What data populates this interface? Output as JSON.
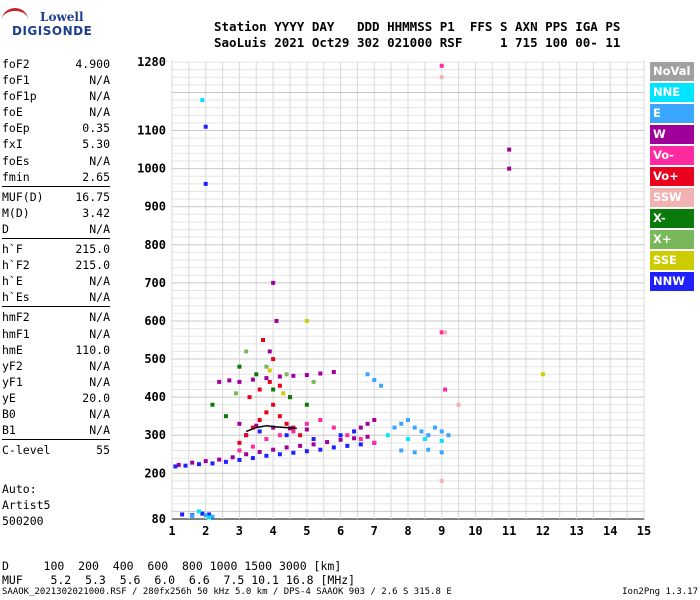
{
  "logo": {
    "line1": "Lowell",
    "line2": "DIGISONDE"
  },
  "header": {
    "labels": "Station YYYY DAY   DDD HHMMSS P1  FFS S AXN PPS IGA PS",
    "values": "SaoLuis 2021 Oct29 302 021000 RSF     1 715 100 00- 11"
  },
  "params": {
    "group1": [
      {
        "k": "foF2",
        "v": "4.900"
      },
      {
        "k": "foF1",
        "v": "N/A"
      },
      {
        "k": "foF1p",
        "v": "N/A"
      },
      {
        "k": "foE",
        "v": "N/A"
      },
      {
        "k": "foEp",
        "v": "0.35"
      },
      {
        "k": "fxI",
        "v": "5.30"
      },
      {
        "k": "foEs",
        "v": "N/A"
      },
      {
        "k": "fmin",
        "v": "2.65"
      }
    ],
    "group2": [
      {
        "k": "MUF(D)",
        "v": "16.75"
      },
      {
        "k": "M(D)",
        "v": "3.42"
      },
      {
        "k": "D",
        "v": "N/A"
      }
    ],
    "group3": [
      {
        "k": "h`F",
        "v": "215.0"
      },
      {
        "k": "h`F2",
        "v": "215.0"
      },
      {
        "k": "h`E",
        "v": "N/A"
      },
      {
        "k": "h`Es",
        "v": "N/A"
      }
    ],
    "group4": [
      {
        "k": "hmF2",
        "v": "N/A"
      },
      {
        "k": "hmF1",
        "v": "N/A"
      },
      {
        "k": "hmE",
        "v": "110.0"
      },
      {
        "k": "yF2",
        "v": "N/A"
      },
      {
        "k": "yF1",
        "v": "N/A"
      },
      {
        "k": "yE",
        "v": "20.0"
      },
      {
        "k": "B0",
        "v": "N/A"
      },
      {
        "k": "B1",
        "v": "N/A"
      }
    ],
    "group5": [
      {
        "k": "C-level",
        "v": "55"
      }
    ]
  },
  "auto": {
    "line1": "Auto:",
    "line2": "Artist5",
    "line3": "500200"
  },
  "legend": [
    {
      "label": "NoVal",
      "color": "#a0a0a0"
    },
    {
      "label": "NNE",
      "color": "#00e5ff"
    },
    {
      "label": "E",
      "color": "#3aa6ff"
    },
    {
      "label": "W",
      "color": "#a0009a"
    },
    {
      "label": "Vo-",
      "color": "#ff2aa0"
    },
    {
      "label": "Vo+",
      "color": "#e8001c"
    },
    {
      "label": "SSW",
      "color": "#f2b2b2"
    },
    {
      "label": "X-",
      "color": "#0a7a0a"
    },
    {
      "label": "X+",
      "color": "#78b85a"
    },
    {
      "label": "SSE",
      "color": "#cccc00"
    },
    {
      "label": "NNW",
      "color": "#2020ff"
    }
  ],
  "bottom_table": {
    "d_row": "D     100  200  400  600  800 1000 1500 3000 [km]",
    "muf_row": "MUF    5.2  5.3  5.6  6.0  6.6  7.5 10.1 16.8 [MHz]"
  },
  "footer": {
    "left": "SAAOK_2021302021000.RSF / 280fx256h 50 kHz 5.0 km / DPS-4 SAAOK 903 / 2.6 S 315.8 E",
    "right": "Ion2Png 1.3.17"
  },
  "chart_data": {
    "type": "scatter",
    "x_ticks": [
      "1",
      "2",
      "3",
      "4",
      "5",
      "6",
      "7",
      "8",
      "9",
      "10",
      "11",
      "12",
      "13",
      "14",
      "15"
    ],
    "y_ticks": [
      "80",
      "200",
      "300",
      "400",
      "500",
      "600",
      "700",
      "800",
      "900",
      "1000",
      "1100",
      "1280"
    ],
    "xlim": [
      1,
      15
    ],
    "ylim": [
      80,
      1280
    ],
    "grid": true,
    "series": [
      {
        "color_key": "W",
        "points": [
          [
            1.2,
            222
          ],
          [
            1.6,
            228
          ],
          [
            2.0,
            232
          ],
          [
            2.4,
            236
          ],
          [
            2.8,
            242
          ],
          [
            3.2,
            250
          ],
          [
            3.6,
            256
          ],
          [
            4.0,
            262
          ],
          [
            4.4,
            268
          ],
          [
            4.8,
            272
          ],
          [
            5.2,
            276
          ],
          [
            5.6,
            282
          ],
          [
            6.0,
            288
          ],
          [
            6.4,
            292
          ],
          [
            6.8,
            296
          ],
          [
            3.0,
            440
          ],
          [
            3.4,
            446
          ],
          [
            3.8,
            450
          ],
          [
            4.2,
            454
          ],
          [
            4.6,
            456
          ],
          [
            5.0,
            458
          ],
          [
            5.4,
            462
          ],
          [
            5.8,
            466
          ],
          [
            2.4,
            440
          ],
          [
            2.7,
            444
          ],
          [
            3.0,
            330
          ],
          [
            3.5,
            325
          ],
          [
            4.0,
            320
          ],
          [
            4.5,
            318
          ],
          [
            5.0,
            315
          ],
          [
            6.6,
            320
          ],
          [
            6.8,
            330
          ],
          [
            7.0,
            340
          ],
          [
            3.9,
            520
          ],
          [
            4.1,
            600
          ],
          [
            4.0,
            700
          ],
          [
            11.0,
            1050
          ],
          [
            11.0,
            1000
          ]
        ]
      },
      {
        "color_key": "NNW",
        "points": [
          [
            1.1,
            218
          ],
          [
            1.4,
            220
          ],
          [
            1.8,
            224
          ],
          [
            2.2,
            226
          ],
          [
            2.6,
            230
          ],
          [
            3.0,
            235
          ],
          [
            3.4,
            240
          ],
          [
            3.8,
            246
          ],
          [
            4.2,
            250
          ],
          [
            4.6,
            254
          ],
          [
            5.0,
            258
          ],
          [
            5.4,
            262
          ],
          [
            5.8,
            268
          ],
          [
            6.2,
            272
          ],
          [
            6.6,
            276
          ],
          [
            7.0,
            280
          ],
          [
            1.3,
            92
          ],
          [
            1.6,
            90
          ],
          [
            1.9,
            94
          ],
          [
            2.1,
            92
          ],
          [
            3.2,
            300
          ],
          [
            3.6,
            310
          ],
          [
            4.4,
            300
          ],
          [
            5.2,
            290
          ],
          [
            6.0,
            300
          ],
          [
            6.4,
            310
          ],
          [
            2.0,
            1110
          ],
          [
            2.0,
            960
          ]
        ]
      },
      {
        "color_key": "Vo+",
        "points": [
          [
            3.2,
            300
          ],
          [
            3.4,
            320
          ],
          [
            3.6,
            340
          ],
          [
            3.8,
            360
          ],
          [
            4.0,
            380
          ],
          [
            4.2,
            350
          ],
          [
            4.4,
            330
          ],
          [
            4.6,
            320
          ],
          [
            3.3,
            400
          ],
          [
            3.6,
            420
          ],
          [
            3.9,
            440
          ],
          [
            4.2,
            430
          ],
          [
            4.5,
            400
          ],
          [
            3.0,
            280
          ],
          [
            4.8,
            300
          ],
          [
            4.0,
            500
          ],
          [
            3.7,
            550
          ]
        ]
      },
      {
        "color_key": "Vo-",
        "points": [
          [
            3.0,
            260
          ],
          [
            3.4,
            270
          ],
          [
            3.8,
            290
          ],
          [
            4.2,
            300
          ],
          [
            4.6,
            310
          ],
          [
            5.0,
            330
          ],
          [
            5.4,
            340
          ],
          [
            5.8,
            320
          ],
          [
            6.2,
            300
          ],
          [
            6.6,
            290
          ],
          [
            7.0,
            280
          ],
          [
            9.0,
            1270
          ],
          [
            9.0,
            570
          ],
          [
            9.1,
            420
          ]
        ]
      },
      {
        "color_key": "E",
        "points": [
          [
            7.6,
            320
          ],
          [
            7.8,
            330
          ],
          [
            8.0,
            340
          ],
          [
            8.2,
            320
          ],
          [
            8.4,
            310
          ],
          [
            8.6,
            300
          ],
          [
            8.8,
            320
          ],
          [
            9.0,
            310
          ],
          [
            9.2,
            300
          ],
          [
            7.8,
            260
          ],
          [
            8.2,
            255
          ],
          [
            8.6,
            262
          ],
          [
            9.0,
            255
          ],
          [
            7.0,
            445
          ],
          [
            7.2,
            430
          ],
          [
            6.8,
            460
          ],
          [
            1.6,
            88
          ],
          [
            2.0,
            90
          ],
          [
            2.2,
            86
          ]
        ]
      },
      {
        "color_key": "NNE",
        "points": [
          [
            7.4,
            300
          ],
          [
            8.0,
            290
          ],
          [
            8.5,
            290
          ],
          [
            9.0,
            285
          ],
          [
            1.9,
            1180
          ],
          [
            1.8,
            100
          ],
          [
            2.1,
            84
          ]
        ]
      },
      {
        "color_key": "X-",
        "points": [
          [
            3.0,
            480
          ],
          [
            3.5,
            460
          ],
          [
            4.0,
            420
          ],
          [
            4.5,
            400
          ],
          [
            5.0,
            380
          ],
          [
            2.2,
            380
          ],
          [
            2.6,
            350
          ]
        ]
      },
      {
        "color_key": "X+",
        "points": [
          [
            3.2,
            520
          ],
          [
            3.8,
            480
          ],
          [
            4.4,
            460
          ],
          [
            5.2,
            440
          ],
          [
            2.9,
            410
          ]
        ]
      },
      {
        "color_key": "SSE",
        "points": [
          [
            3.9,
            470
          ],
          [
            4.3,
            410
          ],
          [
            12.0,
            460
          ],
          [
            5.0,
            600
          ]
        ]
      },
      {
        "color_key": "SSW",
        "points": [
          [
            9.0,
            1240
          ],
          [
            9.1,
            570
          ],
          [
            9.5,
            380
          ],
          [
            9.0,
            180
          ]
        ]
      }
    ],
    "trace": [
      [
        3.2,
        310
      ],
      [
        3.5,
        320
      ],
      [
        3.8,
        325
      ],
      [
        4.1,
        322
      ],
      [
        4.4,
        320
      ],
      [
        4.7,
        318
      ]
    ]
  }
}
